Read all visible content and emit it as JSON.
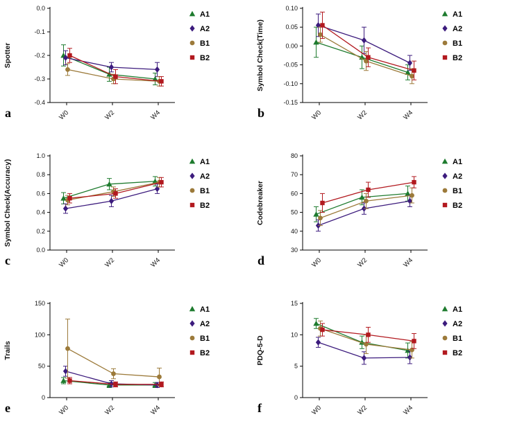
{
  "figure": {
    "background": "#ffffff",
    "x_categories": [
      "W0",
      "W2",
      "W4"
    ],
    "groups": [
      {
        "name": "A1",
        "color": "#1e7b2e",
        "marker": "triangle"
      },
      {
        "name": "A2",
        "color": "#3c1b7d",
        "marker": "diamond"
      },
      {
        "name": "B1",
        "color": "#9c7a3a",
        "marker": "circle"
      },
      {
        "name": "B2",
        "color": "#b2191f",
        "marker": "square"
      }
    ],
    "legend_labels": [
      "A1",
      "A2",
      "B1",
      "B2"
    ]
  },
  "chart_data": [
    {
      "type": "line",
      "panel": "a",
      "title": "",
      "ylabel": "Spotter",
      "xlabel": "",
      "x": [
        "W0",
        "W2",
        "W4"
      ],
      "ylim": [
        -0.4,
        0.0
      ],
      "grid": false,
      "legend_position": "right",
      "yticks": [
        {
          "v": 0.0,
          "label": "0.0"
        },
        {
          "v": -0.1,
          "label": "-0.1"
        },
        {
          "v": -0.2,
          "label": "-0.2"
        },
        {
          "v": -0.3,
          "label": "-0.3"
        },
        {
          "v": -0.4,
          "label": "-0.4"
        }
      ],
      "series": [
        {
          "name": "A1",
          "values": [
            -0.2,
            -0.28,
            -0.3
          ],
          "errors": [
            0.045,
            0.03,
            0.025
          ]
        },
        {
          "name": "A2",
          "values": [
            -0.21,
            -0.25,
            -0.26
          ],
          "errors": [
            0.03,
            0.02,
            0.03
          ]
        },
        {
          "name": "B1",
          "values": [
            -0.26,
            -0.3,
            -0.31
          ],
          "errors": [
            0.025,
            0.02,
            0.02
          ]
        },
        {
          "name": "B2",
          "values": [
            -0.2,
            -0.29,
            -0.31
          ],
          "errors": [
            0.03,
            0.03,
            0.02
          ]
        }
      ]
    },
    {
      "type": "line",
      "panel": "b",
      "title": "",
      "ylabel": "Symbol Check(Time)",
      "xlabel": "",
      "x": [
        "W0",
        "W2",
        "W4"
      ],
      "ylim": [
        -0.15,
        0.1
      ],
      "grid": false,
      "legend_position": "right",
      "yticks": [
        {
          "v": 0.1,
          "label": "0.10"
        },
        {
          "v": 0.05,
          "label": "0.05"
        },
        {
          "v": 0.0,
          "label": "0.00"
        },
        {
          "v": -0.05,
          "label": "-0.05"
        },
        {
          "v": -0.1,
          "label": "-0.10"
        },
        {
          "v": -0.15,
          "label": "-0.15"
        }
      ],
      "series": [
        {
          "name": "A1",
          "values": [
            0.01,
            -0.03,
            -0.07
          ],
          "errors": [
            0.04,
            0.03,
            0.02
          ]
        },
        {
          "name": "A2",
          "values": [
            0.055,
            0.015,
            -0.045
          ],
          "errors": [
            0.03,
            0.035,
            0.02
          ]
        },
        {
          "name": "B1",
          "values": [
            0.03,
            -0.04,
            -0.08
          ],
          "errors": [
            0.02,
            0.025,
            0.02
          ]
        },
        {
          "name": "B2",
          "values": [
            0.055,
            -0.03,
            -0.065
          ],
          "errors": [
            0.035,
            0.025,
            0.025
          ]
        }
      ]
    },
    {
      "type": "line",
      "panel": "c",
      "title": "",
      "ylabel": "Symbol Check(Accuracy)",
      "xlabel": "",
      "x": [
        "W0",
        "W2",
        "W4"
      ],
      "ylim": [
        0.0,
        1.0
      ],
      "grid": false,
      "legend_position": "right",
      "yticks": [
        {
          "v": 1.0,
          "label": "1.0"
        },
        {
          "v": 0.8,
          "label": "0.8"
        },
        {
          "v": 0.6,
          "label": "0.6"
        },
        {
          "v": 0.4,
          "label": "0.4"
        },
        {
          "v": 0.2,
          "label": "0.2"
        },
        {
          "v": 0.0,
          "label": "0.0"
        }
      ],
      "series": [
        {
          "name": "A1",
          "values": [
            0.55,
            0.7,
            0.73
          ],
          "errors": [
            0.06,
            0.06,
            0.05
          ]
        },
        {
          "name": "A2",
          "values": [
            0.44,
            0.52,
            0.65
          ],
          "errors": [
            0.05,
            0.06,
            0.05
          ]
        },
        {
          "name": "B1",
          "values": [
            0.53,
            0.62,
            0.72
          ],
          "errors": [
            0.05,
            0.05,
            0.05
          ]
        },
        {
          "name": "B2",
          "values": [
            0.55,
            0.6,
            0.72
          ],
          "errors": [
            0.05,
            0.05,
            0.05
          ]
        }
      ]
    },
    {
      "type": "line",
      "panel": "d",
      "title": "",
      "ylabel": "Codebreaker",
      "xlabel": "",
      "x": [
        "W0",
        "W2",
        "W4"
      ],
      "ylim": [
        30,
        80
      ],
      "grid": false,
      "legend_position": "right",
      "yticks": [
        {
          "v": 80,
          "label": "80"
        },
        {
          "v": 70,
          "label": "70"
        },
        {
          "v": 60,
          "label": "60"
        },
        {
          "v": 50,
          "label": "50"
        },
        {
          "v": 40,
          "label": "40"
        },
        {
          "v": 30,
          "label": "30"
        }
      ],
      "series": [
        {
          "name": "A1",
          "values": [
            49,
            58,
            60
          ],
          "errors": [
            4,
            4,
            4
          ]
        },
        {
          "name": "A2",
          "values": [
            43,
            52,
            56
          ],
          "errors": [
            3,
            3,
            3
          ]
        },
        {
          "name": "B1",
          "values": [
            47,
            56,
            59
          ],
          "errors": [
            4,
            4,
            4
          ]
        },
        {
          "name": "B2",
          "values": [
            55,
            62,
            66
          ],
          "errors": [
            5,
            4,
            3
          ]
        }
      ]
    },
    {
      "type": "line",
      "panel": "e",
      "title": "",
      "ylabel": "Trails",
      "xlabel": "",
      "x": [
        "W0",
        "W2",
        "W4"
      ],
      "ylim": [
        0,
        150
      ],
      "grid": false,
      "legend_position": "right",
      "yticks": [
        {
          "v": 150,
          "label": "150"
        },
        {
          "v": 100,
          "label": "100"
        },
        {
          "v": 50,
          "label": "50"
        },
        {
          "v": 0,
          "label": "0"
        }
      ],
      "series": [
        {
          "name": "A1",
          "values": [
            27,
            20,
            20
          ],
          "errors": [
            5,
            4,
            4
          ]
        },
        {
          "name": "A2",
          "values": [
            42,
            22,
            20
          ],
          "errors": [
            8,
            5,
            4
          ]
        },
        {
          "name": "B1",
          "values": [
            78,
            38,
            33
          ],
          "errors": [
            47,
            8,
            14
          ]
        },
        {
          "name": "B2",
          "values": [
            27,
            21,
            21
          ],
          "errors": [
            5,
            4,
            4
          ]
        }
      ]
    },
    {
      "type": "line",
      "panel": "f",
      "title": "",
      "ylabel": "PDQ-5-D",
      "xlabel": "",
      "x": [
        "W0",
        "W2",
        "W4"
      ],
      "ylim": [
        0,
        15
      ],
      "grid": false,
      "legend_position": "right",
      "yticks": [
        {
          "v": 15,
          "label": "15"
        },
        {
          "v": 10,
          "label": "10"
        },
        {
          "v": 5,
          "label": "5"
        },
        {
          "v": 0,
          "label": "0"
        }
      ],
      "series": [
        {
          "name": "A1",
          "values": [
            11.8,
            8.8,
            7.5
          ],
          "errors": [
            0.8,
            1.0,
            1.2
          ]
        },
        {
          "name": "A2",
          "values": [
            8.8,
            6.3,
            6.4
          ],
          "errors": [
            0.8,
            1.0,
            1.0
          ]
        },
        {
          "name": "B1",
          "values": [
            11.0,
            8.5,
            7.6
          ],
          "errors": [
            1.2,
            1.5,
            1.3
          ]
        },
        {
          "name": "B2",
          "values": [
            10.8,
            10.0,
            9.0
          ],
          "errors": [
            1.0,
            1.2,
            1.2
          ]
        }
      ]
    }
  ]
}
